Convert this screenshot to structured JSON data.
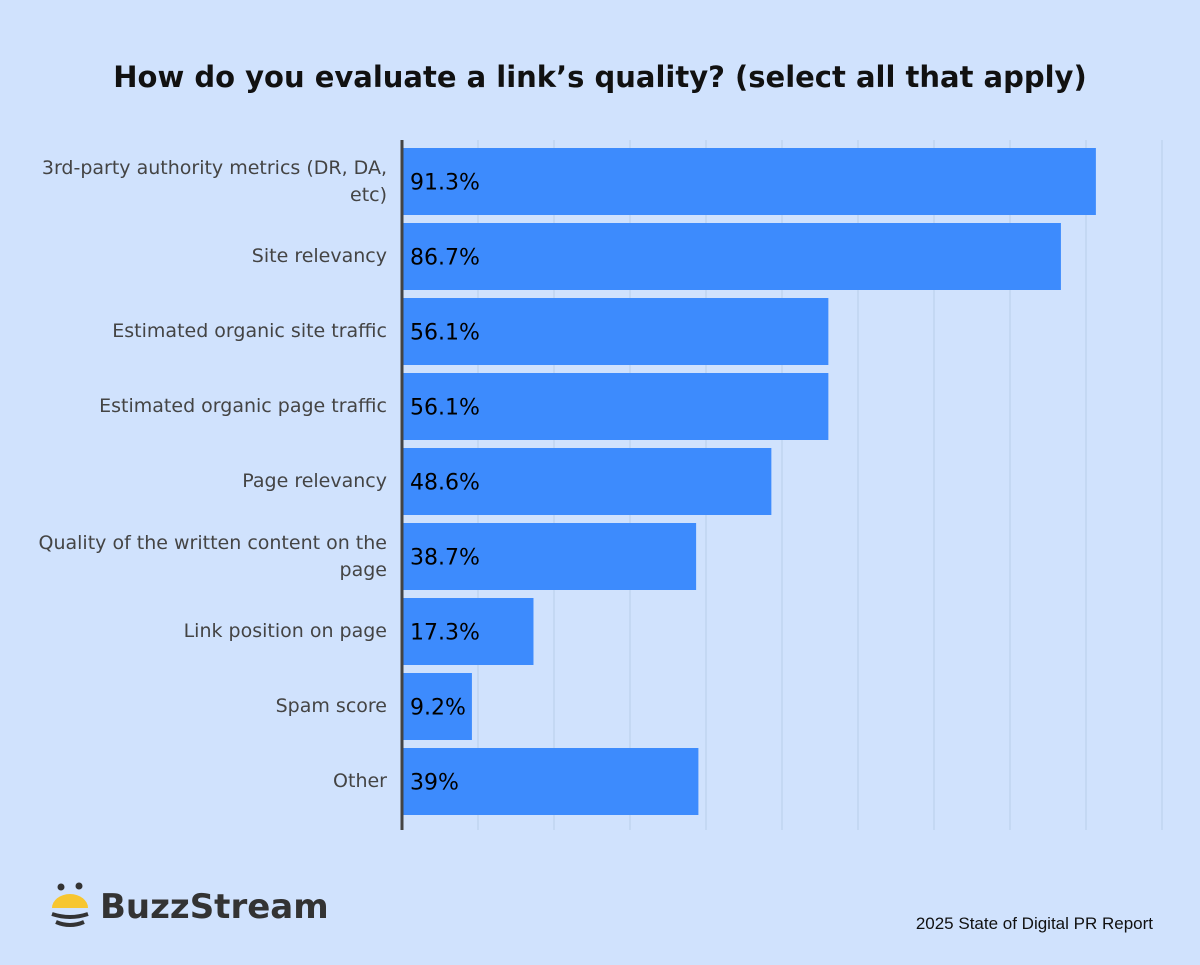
{
  "chart_data": {
    "type": "bar",
    "orientation": "horizontal",
    "title": "How do you evaluate a link’s quality? (select all that apply)",
    "categories": [
      "3rd-party authority metrics (DR, DA, etc)",
      "Site relevancy",
      "Estimated organic site traffic",
      "Estimated organic page traffic",
      "Page relevancy",
      "Quality of the written content on the page",
      "Link position on page",
      "Spam score",
      "Other"
    ],
    "values": [
      91.3,
      86.7,
      56.1,
      56.1,
      48.6,
      38.7,
      17.3,
      9.2,
      39
    ],
    "data_labels": [
      "91.3%",
      "86.7%",
      "56.1%",
      "56.1%",
      "48.6%",
      "38.7%",
      "17.3%",
      "9.2%",
      "39%"
    ],
    "xlim": [
      0,
      100
    ],
    "grid": true,
    "bar_color": "#3d8bfd",
    "background": "#d0e2fd"
  },
  "brand": {
    "name": "BuzzStream"
  },
  "source": "2025 State of Digital PR Report"
}
